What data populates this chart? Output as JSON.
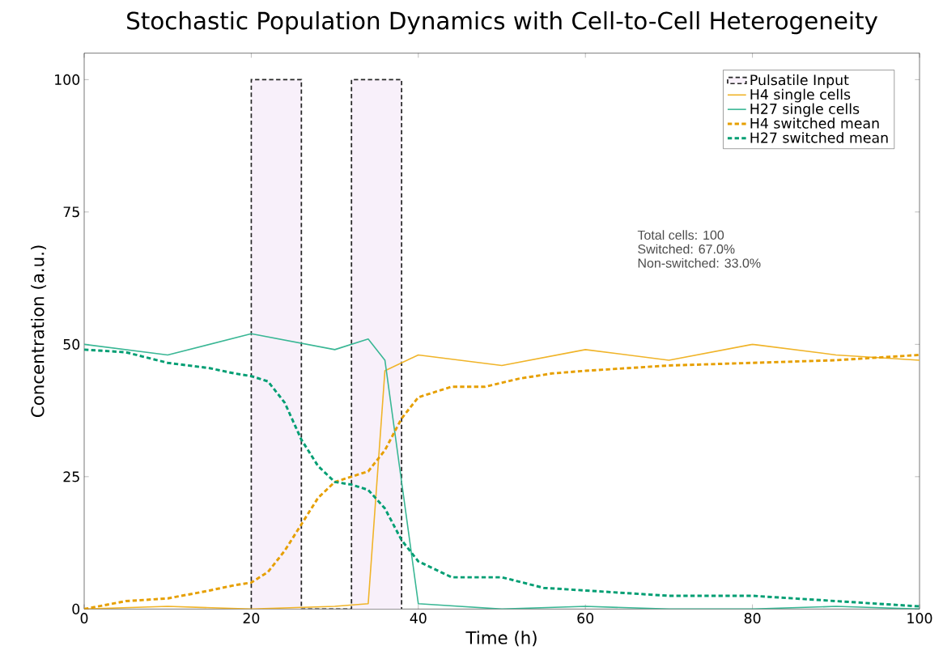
{
  "chart_data": {
    "type": "line",
    "title": "Stochastic Population Dynamics with Cell-to-Cell Heterogeneity",
    "xlabel": "Time (h)",
    "ylabel": "Concentration (a.u.)",
    "xlim": [
      0,
      100
    ],
    "ylim": [
      0,
      105
    ],
    "xticks": [
      0,
      20,
      40,
      60,
      80,
      100
    ],
    "yticks": [
      0,
      25,
      50,
      75,
      100
    ],
    "grid": false,
    "legend": "top right",
    "series": [
      {
        "name": "Pulsatile Input",
        "type": "area",
        "color": "#f8f0fa",
        "line_style": "dashed",
        "x": [
          20,
          20,
          26,
          26,
          32,
          32,
          38,
          38
        ],
        "values": [
          0,
          100,
          100,
          0,
          0,
          100,
          100,
          0
        ]
      },
      {
        "name": "H4 single cells",
        "color": "#f0b429",
        "line_style": "solid",
        "x": [
          0,
          10,
          20,
          30,
          34,
          36,
          40,
          50,
          60,
          70,
          80,
          90,
          100
        ],
        "values": [
          0,
          0.5,
          0,
          0.5,
          1,
          45,
          48,
          46,
          49,
          47,
          50,
          48,
          47
        ]
      },
      {
        "name": "H27 single cells",
        "color": "#3ab795",
        "line_style": "solid",
        "x": [
          0,
          10,
          20,
          30,
          34,
          36,
          40,
          50,
          60,
          70,
          80,
          90,
          100
        ],
        "values": [
          50,
          48,
          52,
          49,
          51,
          47,
          1,
          0,
          0.5,
          0,
          0,
          0.5,
          0
        ]
      },
      {
        "name": "H4 switched mean",
        "color": "#e69f00",
        "line_style": "dashed",
        "x": [
          0,
          5,
          10,
          15,
          18,
          20,
          22,
          24,
          26,
          28,
          30,
          32,
          34,
          36,
          38,
          40,
          44,
          48,
          52,
          56,
          60,
          70,
          80,
          90,
          100
        ],
        "values": [
          0,
          1.5,
          2,
          3.5,
          4.5,
          5,
          7,
          11,
          16,
          21,
          24,
          25,
          26,
          30,
          36,
          40,
          42,
          42,
          43.5,
          44.5,
          45,
          46,
          46.5,
          47,
          48
        ]
      },
      {
        "name": "H27 switched mean",
        "color": "#009e73",
        "line_style": "dashed",
        "x": [
          0,
          5,
          10,
          15,
          18,
          20,
          22,
          24,
          26,
          28,
          30,
          32,
          34,
          36,
          38,
          40,
          44,
          50,
          55,
          60,
          65,
          70,
          80,
          85,
          90,
          95,
          100
        ],
        "values": [
          49,
          48.5,
          46.5,
          45.5,
          44.5,
          44,
          43,
          39,
          32,
          27,
          24,
          23.5,
          22.5,
          19,
          13,
          9,
          6,
          6,
          4,
          3.5,
          3,
          2.5,
          2.5,
          2,
          1.5,
          1,
          0.5
        ]
      }
    ],
    "annotations": [
      "Total cells: 100",
      "Switched: 67.0%",
      "Non-switched: 33.0%"
    ]
  }
}
